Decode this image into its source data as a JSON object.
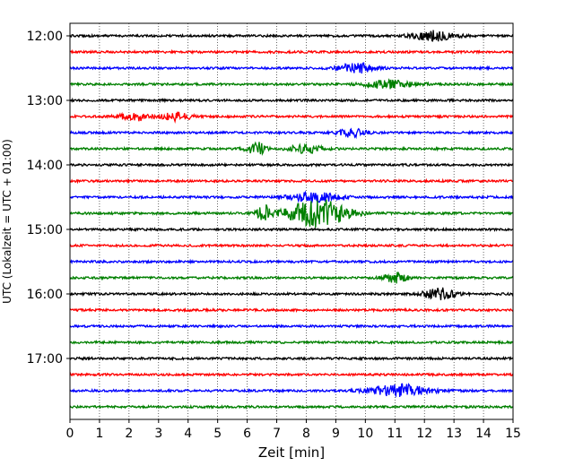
{
  "chart_data": {
    "type": "line",
    "title": "",
    "xlabel": "Zeit  [min]",
    "ylabel": "UTC (Lokalzeit = UTC + 01:00)",
    "xlim": [
      0,
      15
    ],
    "x_ticks": [
      0,
      1,
      2,
      3,
      4,
      5,
      6,
      7,
      8,
      9,
      10,
      11,
      12,
      13,
      14,
      15
    ],
    "y_tick_labels": [
      "12:00",
      "13:00",
      "14:00",
      "15:00",
      "16:00",
      "17:00"
    ],
    "grid": "vertical dotted",
    "trace_interval_minutes": 15,
    "trace_colors": [
      "#000000",
      "#ff0000",
      "#0000ff",
      "#008000"
    ],
    "series": [
      {
        "start": "12:00",
        "color": "#000000",
        "events": [
          [
            12.3,
            0.7,
            1.0
          ]
        ]
      },
      {
        "start": "12:15",
        "color": "#ff0000",
        "events": []
      },
      {
        "start": "12:30",
        "color": "#0000ff",
        "events": [
          [
            9.7,
            0.6,
            1.0
          ]
        ]
      },
      {
        "start": "12:45",
        "color": "#008000",
        "events": [
          [
            10.8,
            0.9,
            0.8
          ]
        ]
      },
      {
        "start": "13:00",
        "color": "#000000",
        "events": []
      },
      {
        "start": "13:15",
        "color": "#ff0000",
        "events": [
          [
            2.2,
            0.5,
            0.8
          ],
          [
            3.6,
            0.5,
            0.8
          ]
        ]
      },
      {
        "start": "13:30",
        "color": "#0000ff",
        "events": [
          [
            9.5,
            0.5,
            0.8
          ]
        ]
      },
      {
        "start": "13:45",
        "color": "#008000",
        "events": [
          [
            6.3,
            0.3,
            1.6
          ],
          [
            8.0,
            0.6,
            0.8
          ]
        ]
      },
      {
        "start": "14:00",
        "color": "#000000",
        "events": []
      },
      {
        "start": "14:15",
        "color": "#ff0000",
        "events": []
      },
      {
        "start": "14:30",
        "color": "#0000ff",
        "events": [
          [
            8.3,
            0.8,
            1.0
          ]
        ]
      },
      {
        "start": "14:45",
        "color": "#008000",
        "events": [
          [
            6.6,
            0.3,
            1.5
          ],
          [
            8.4,
            1.0,
            2.8
          ]
        ]
      },
      {
        "start": "15:00",
        "color": "#000000",
        "events": []
      },
      {
        "start": "15:15",
        "color": "#ff0000",
        "events": []
      },
      {
        "start": "15:30",
        "color": "#0000ff",
        "events": []
      },
      {
        "start": "15:45",
        "color": "#008000",
        "events": [
          [
            11.0,
            0.4,
            1.0
          ]
        ]
      },
      {
        "start": "16:00",
        "color": "#000000",
        "events": [
          [
            12.5,
            0.5,
            1.2
          ]
        ]
      },
      {
        "start": "16:15",
        "color": "#ff0000",
        "events": []
      },
      {
        "start": "16:30",
        "color": "#0000ff",
        "events": []
      },
      {
        "start": "16:45",
        "color": "#008000",
        "events": []
      },
      {
        "start": "17:00",
        "color": "#000000",
        "events": []
      },
      {
        "start": "17:15",
        "color": "#ff0000",
        "events": []
      },
      {
        "start": "17:30",
        "color": "#0000ff",
        "events": [
          [
            11.2,
            1.0,
            1.2
          ]
        ]
      },
      {
        "start": "17:45",
        "color": "#008000",
        "events": []
      }
    ]
  }
}
